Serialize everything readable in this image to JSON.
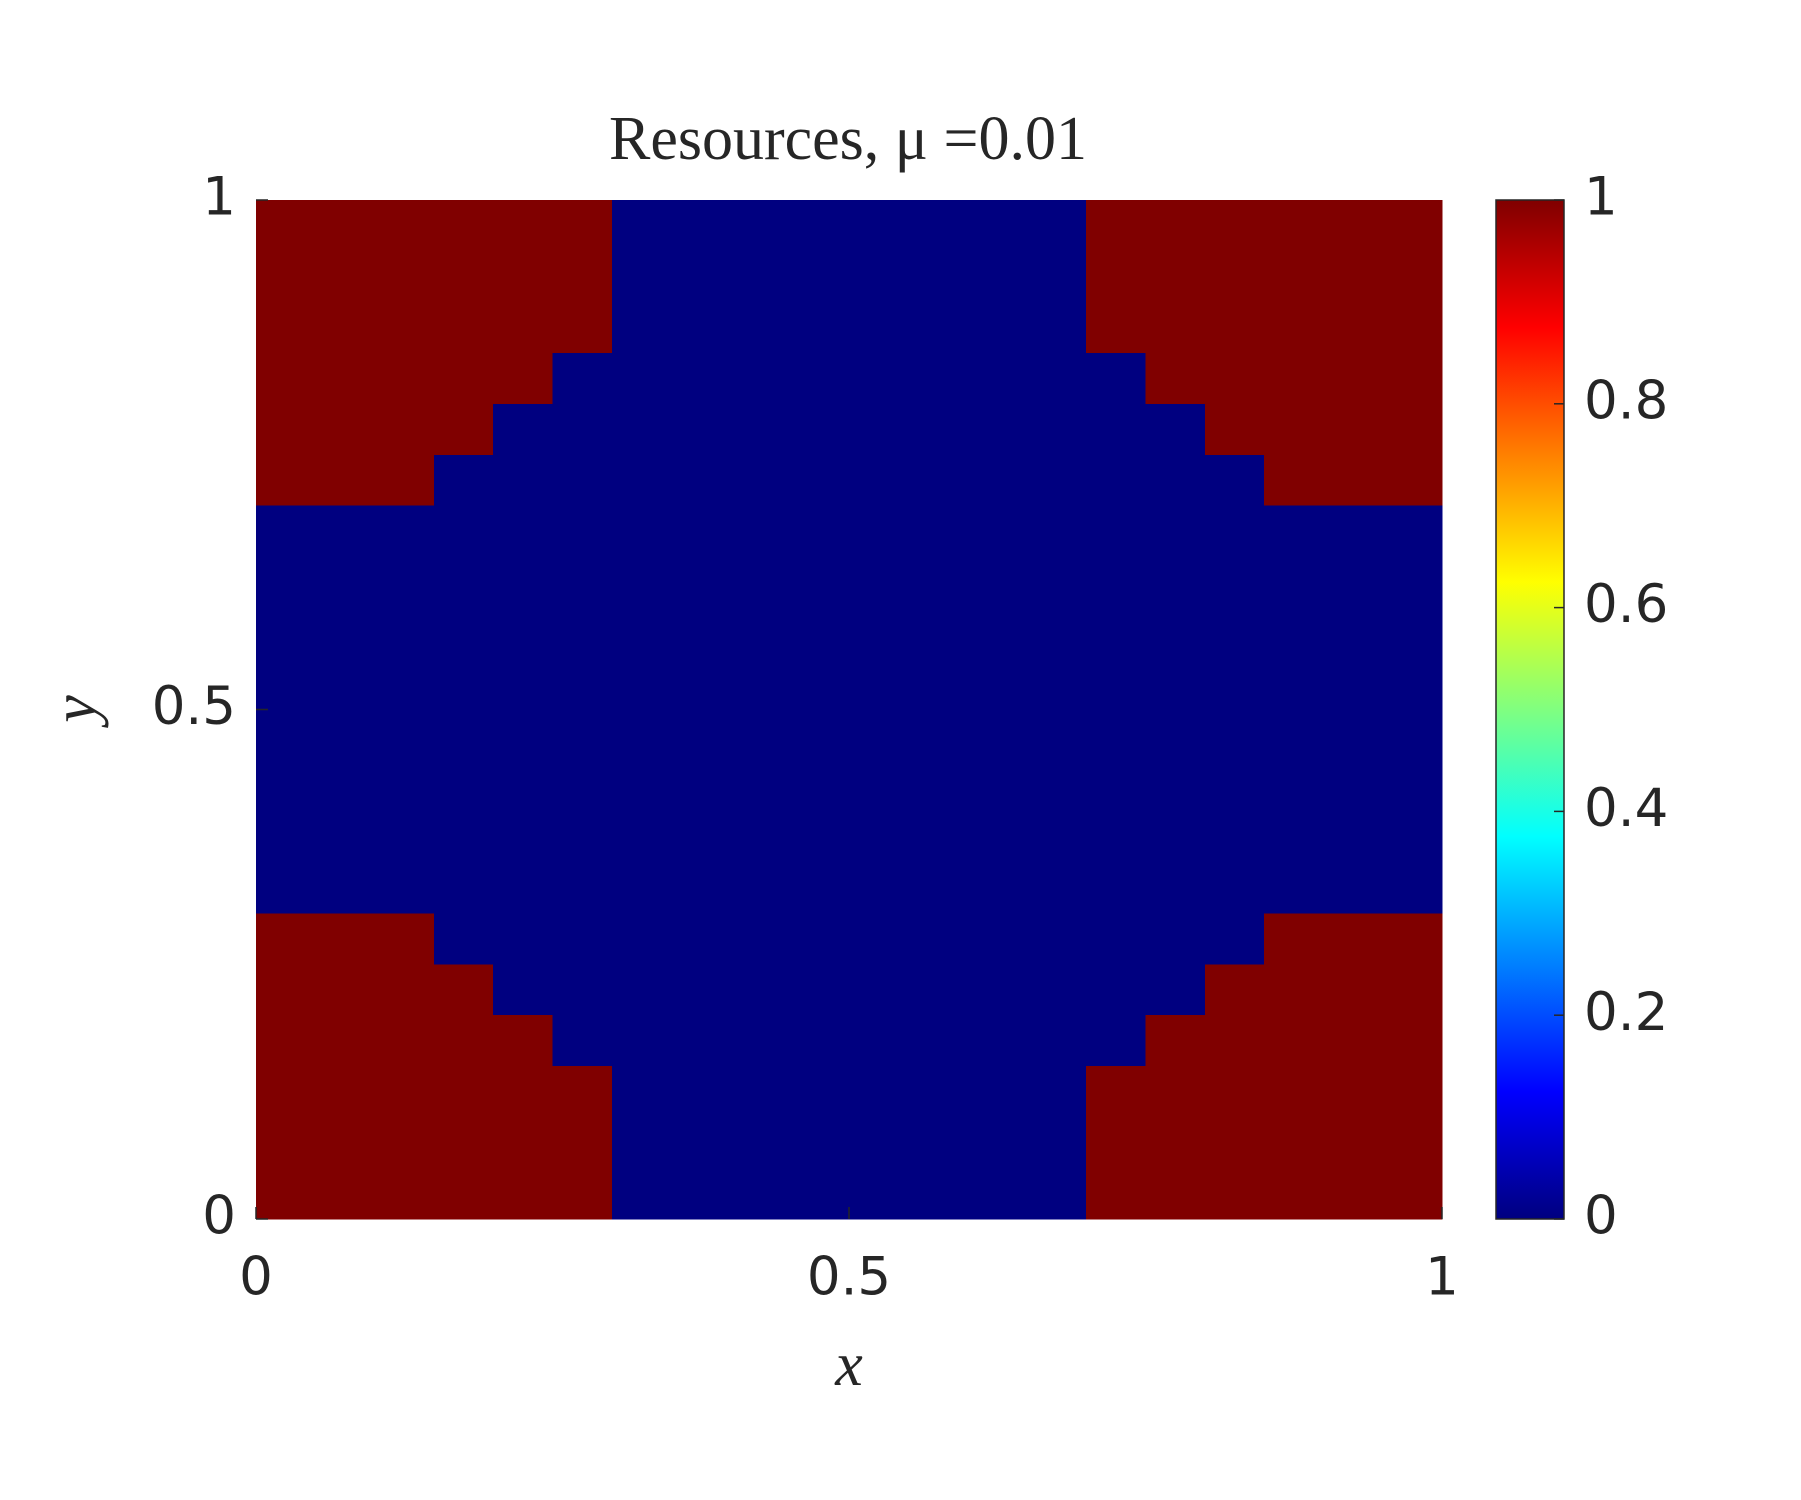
{
  "chart_data": {
    "type": "heatmap",
    "title": "Resources, μ =0.01",
    "xlabel": "x",
    "ylabel": "y",
    "xlim": [
      0,
      1
    ],
    "ylim": [
      0,
      1
    ],
    "xticks": [
      0,
      0.5,
      1
    ],
    "yticks": [
      0,
      0.5,
      1
    ],
    "colormap": "jet",
    "clim": [
      0,
      1
    ],
    "cticks": [
      0,
      0.2,
      0.4,
      0.6,
      0.8,
      1
    ],
    "z": [
      [
        1,
        1,
        1,
        1,
        1,
        1,
        0,
        0,
        0,
        0,
        0,
        0,
        0,
        0,
        1,
        1,
        1,
        1,
        1,
        1
      ],
      [
        1,
        1,
        1,
        1,
        1,
        1,
        0,
        0,
        0,
        0,
        0,
        0,
        0,
        0,
        1,
        1,
        1,
        1,
        1,
        1
      ],
      [
        1,
        1,
        1,
        1,
        1,
        1,
        0,
        0,
        0,
        0,
        0,
        0,
        0,
        0,
        1,
        1,
        1,
        1,
        1,
        1
      ],
      [
        1,
        1,
        1,
        1,
        1,
        0,
        0,
        0,
        0,
        0,
        0,
        0,
        0,
        0,
        0,
        1,
        1,
        1,
        1,
        1
      ],
      [
        1,
        1,
        1,
        1,
        0,
        0,
        0,
        0,
        0,
        0,
        0,
        0,
        0,
        0,
        0,
        0,
        1,
        1,
        1,
        1
      ],
      [
        1,
        1,
        1,
        0,
        0,
        0,
        0,
        0,
        0,
        0,
        0,
        0,
        0,
        0,
        0,
        0,
        0,
        1,
        1,
        1
      ],
      [
        0,
        0,
        0,
        0,
        0,
        0,
        0,
        0,
        0,
        0,
        0,
        0,
        0,
        0,
        0,
        0,
        0,
        0,
        0,
        0
      ],
      [
        0,
        0,
        0,
        0,
        0,
        0,
        0,
        0,
        0,
        0,
        0,
        0,
        0,
        0,
        0,
        0,
        0,
        0,
        0,
        0
      ],
      [
        0,
        0,
        0,
        0,
        0,
        0,
        0,
        0,
        0,
        0,
        0,
        0,
        0,
        0,
        0,
        0,
        0,
        0,
        0,
        0
      ],
      [
        0,
        0,
        0,
        0,
        0,
        0,
        0,
        0,
        0,
        0,
        0,
        0,
        0,
        0,
        0,
        0,
        0,
        0,
        0,
        0
      ],
      [
        0,
        0,
        0,
        0,
        0,
        0,
        0,
        0,
        0,
        0,
        0,
        0,
        0,
        0,
        0,
        0,
        0,
        0,
        0,
        0
      ],
      [
        0,
        0,
        0,
        0,
        0,
        0,
        0,
        0,
        0,
        0,
        0,
        0,
        0,
        0,
        0,
        0,
        0,
        0,
        0,
        0
      ],
      [
        0,
        0,
        0,
        0,
        0,
        0,
        0,
        0,
        0,
        0,
        0,
        0,
        0,
        0,
        0,
        0,
        0,
        0,
        0,
        0
      ],
      [
        0,
        0,
        0,
        0,
        0,
        0,
        0,
        0,
        0,
        0,
        0,
        0,
        0,
        0,
        0,
        0,
        0,
        0,
        0,
        0
      ],
      [
        1,
        1,
        1,
        0,
        0,
        0,
        0,
        0,
        0,
        0,
        0,
        0,
        0,
        0,
        0,
        0,
        0,
        1,
        1,
        1
      ],
      [
        1,
        1,
        1,
        1,
        0,
        0,
        0,
        0,
        0,
        0,
        0,
        0,
        0,
        0,
        0,
        0,
        1,
        1,
        1,
        1
      ],
      [
        1,
        1,
        1,
        1,
        1,
        0,
        0,
        0,
        0,
        0,
        0,
        0,
        0,
        0,
        0,
        1,
        1,
        1,
        1,
        1
      ],
      [
        1,
        1,
        1,
        1,
        1,
        1,
        0,
        0,
        0,
        0,
        0,
        0,
        0,
        0,
        1,
        1,
        1,
        1,
        1,
        1
      ],
      [
        1,
        1,
        1,
        1,
        1,
        1,
        0,
        0,
        0,
        0,
        0,
        0,
        0,
        0,
        1,
        1,
        1,
        1,
        1,
        1
      ],
      [
        1,
        1,
        1,
        1,
        1,
        1,
        0,
        0,
        0,
        0,
        0,
        0,
        0,
        0,
        1,
        1,
        1,
        1,
        1,
        1
      ]
    ]
  }
}
